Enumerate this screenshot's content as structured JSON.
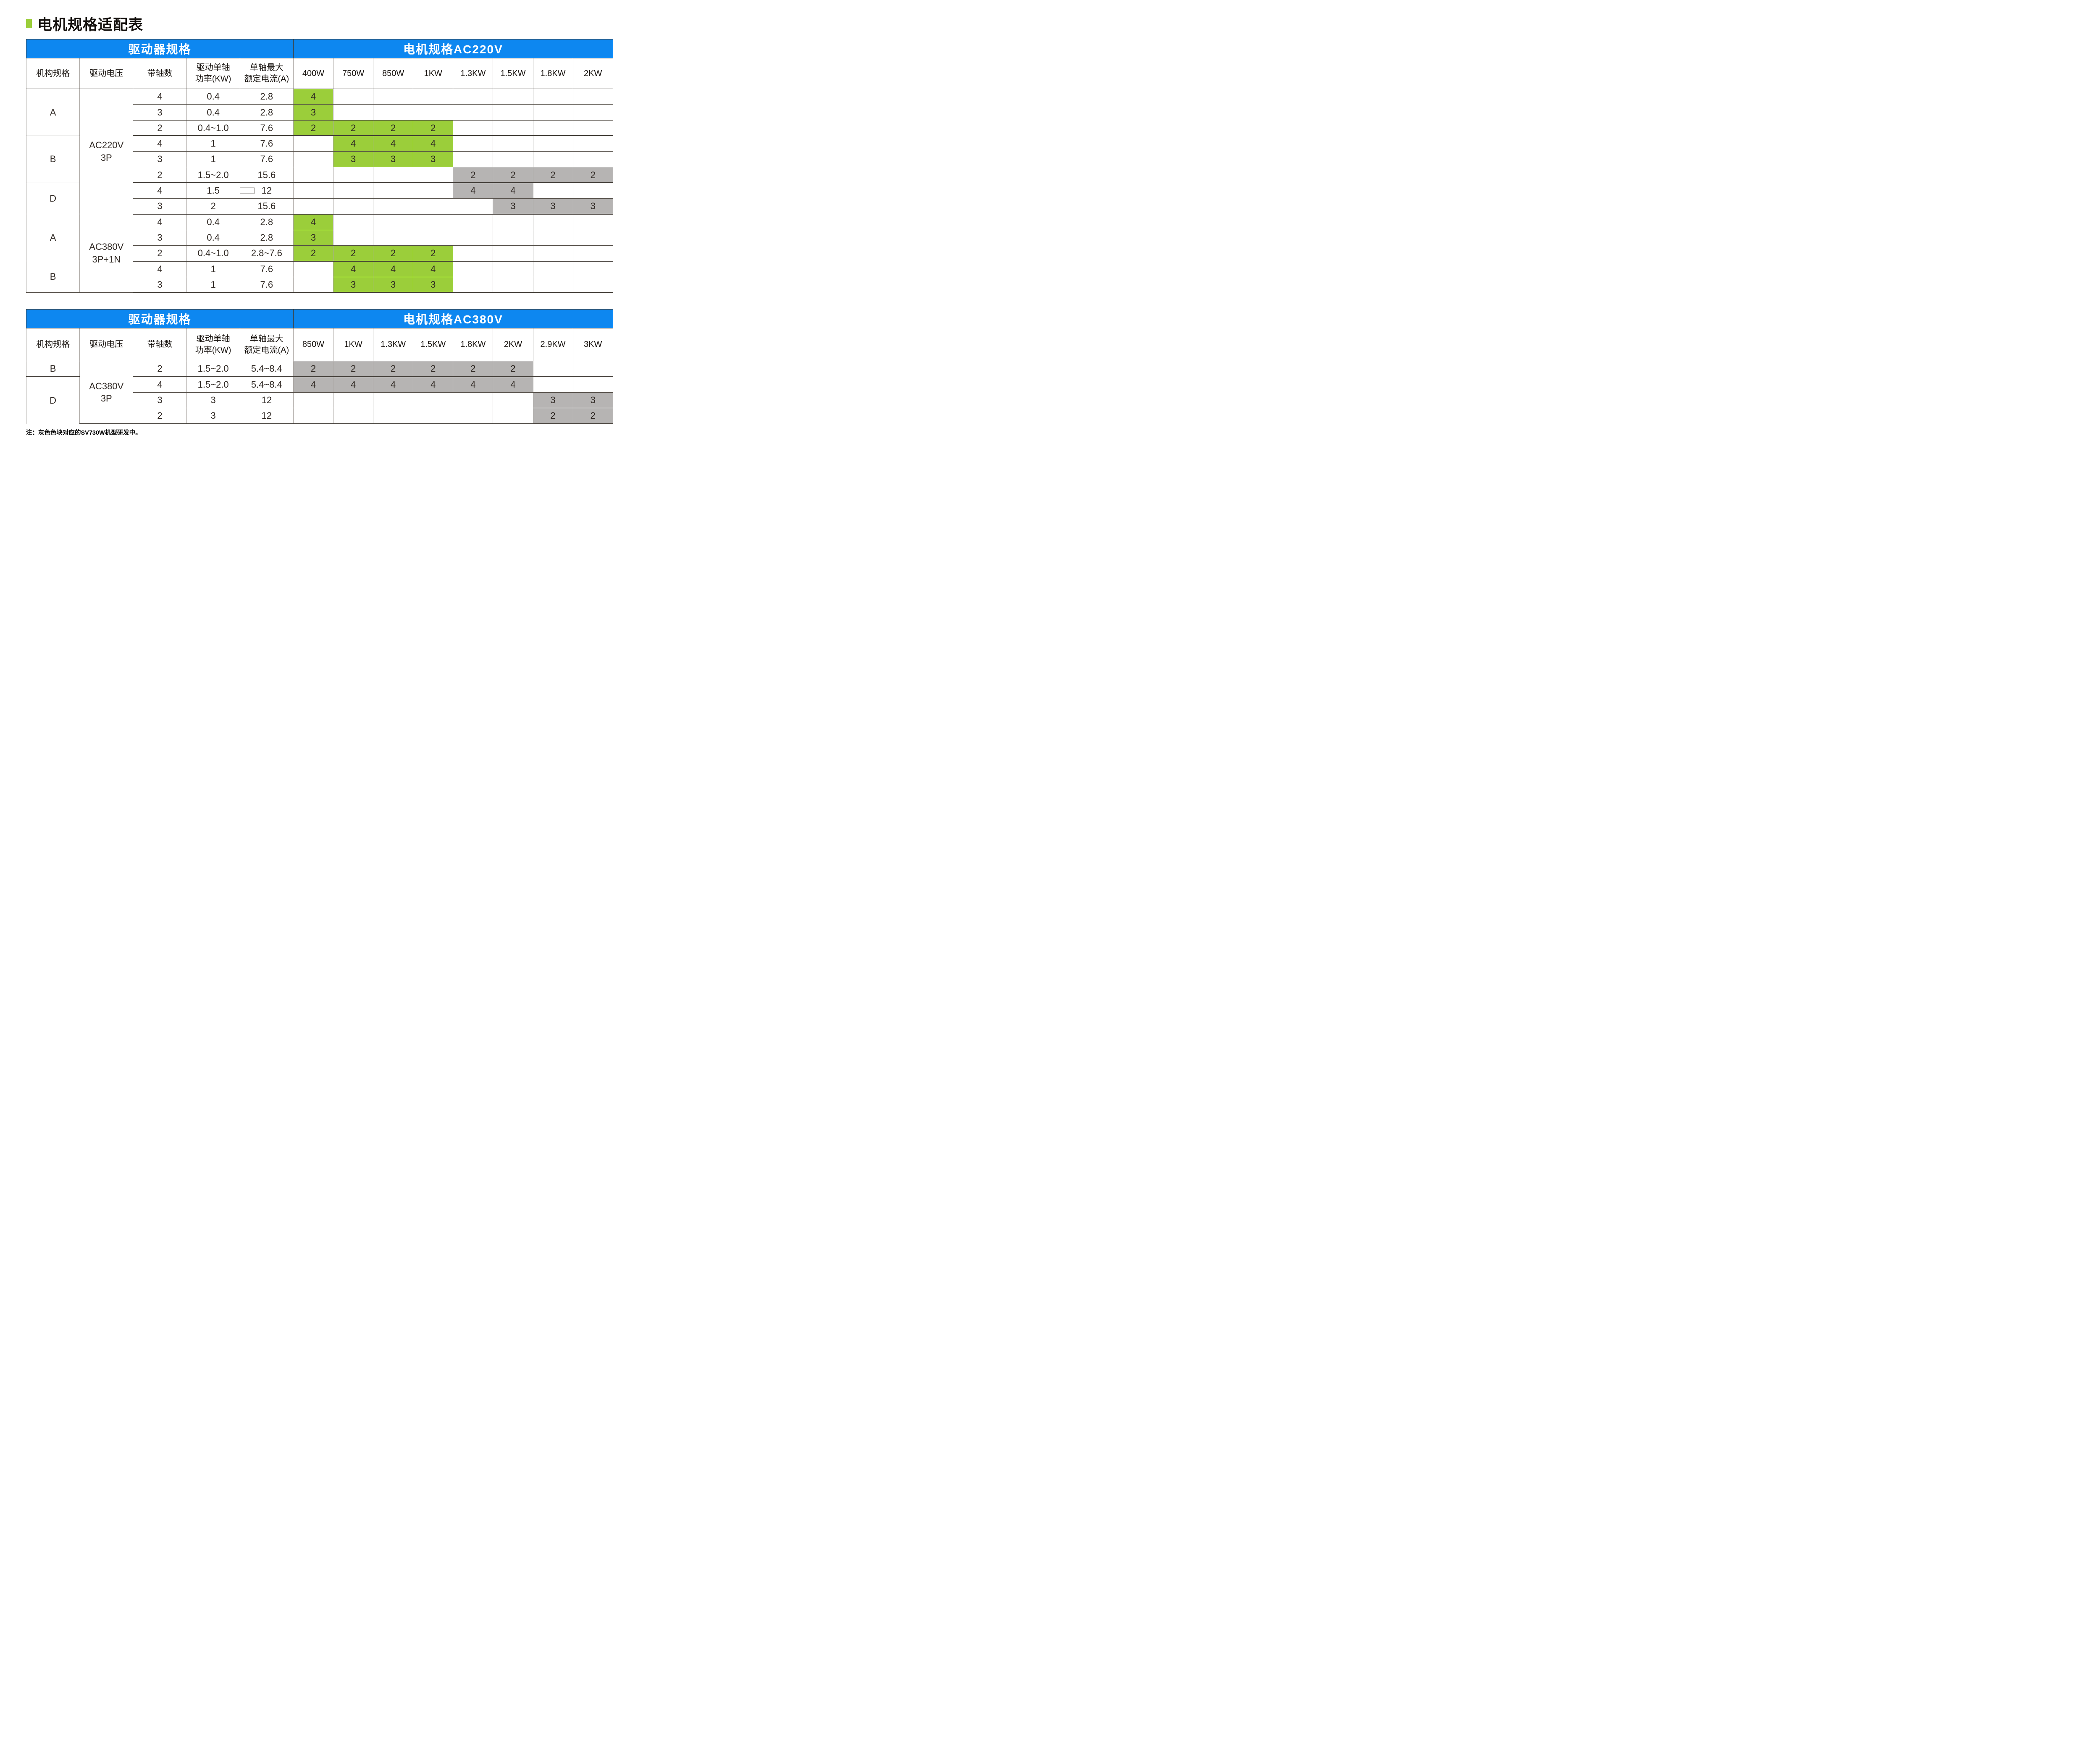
{
  "page": {
    "title": "电机规格适配表",
    "note": "注：灰色色块对应的SV730W机型研发中。"
  },
  "colors": {
    "banner_blue": "#0d87f0",
    "cell_green": "#9bce3a",
    "cell_gray": "#b6b4b3",
    "title_bullet_green": "#9bce3a",
    "grid_dark": "#4b463f",
    "grid_light": "#aaa6a2"
  },
  "tables": [
    {
      "name": "motor-adaptation-ac220v",
      "banner_left": "驱动器规格",
      "banner_right": "电机规格AC220V",
      "spec_columns": [
        "机构规格",
        "驱动电压",
        "带轴数",
        "驱动单轴\n功率(KW)",
        "单轴最大\n额定电流(A)"
      ],
      "motor_columns": [
        "400W",
        "750W",
        "850W",
        "1KW",
        "1.3KW",
        "1.5KW",
        "1.8KW",
        "2KW"
      ],
      "rows": [
        {
          "frame": {
            "v": "A",
            "rs": 3
          },
          "voltage": {
            "v": "AC220V\n3P",
            "rs": 8
          },
          "axes": "4",
          "power": "0.4",
          "current": "2.8",
          "motor": [
            [
              "4",
              "green"
            ],
            null,
            null,
            null,
            null,
            null,
            null,
            null
          ]
        },
        {
          "axes": "3",
          "power": "0.4",
          "current": "2.8",
          "motor": [
            [
              "3",
              "green"
            ],
            null,
            null,
            null,
            null,
            null,
            null,
            null
          ]
        },
        {
          "axes": "2",
          "power": "0.4~1.0",
          "current": "7.6",
          "group_end": true,
          "motor": [
            [
              "2",
              "green"
            ],
            [
              "2",
              "green"
            ],
            [
              "2",
              "green"
            ],
            [
              "2",
              "green"
            ],
            null,
            null,
            null,
            null
          ]
        },
        {
          "frame": {
            "v": "B",
            "rs": 3
          },
          "axes": "4",
          "power": "1",
          "current": "7.6",
          "motor": [
            null,
            [
              "4",
              "green"
            ],
            [
              "4",
              "green"
            ],
            [
              "4",
              "green"
            ],
            null,
            null,
            null,
            null
          ]
        },
        {
          "axes": "3",
          "power": "1",
          "current": "7.6",
          "motor": [
            null,
            [
              "3",
              "green"
            ],
            [
              "3",
              "green"
            ],
            [
              "3",
              "green"
            ],
            null,
            null,
            null,
            null
          ]
        },
        {
          "axes": "2",
          "power": "1.5~2.0",
          "current": "15.6",
          "group_end": true,
          "motor": [
            null,
            null,
            null,
            null,
            [
              "2",
              "gray"
            ],
            [
              "2",
              "gray"
            ],
            [
              "2",
              "gray"
            ],
            [
              "2",
              "gray"
            ]
          ]
        },
        {
          "frame": {
            "v": "D",
            "rs": 2
          },
          "axes": "4",
          "power": "1.5",
          "current": "12",
          "artifact_box": true,
          "motor": [
            null,
            null,
            null,
            null,
            [
              "4",
              "gray"
            ],
            [
              "4",
              "gray"
            ],
            null,
            null
          ]
        },
        {
          "axes": "3",
          "power": "2",
          "current": "15.6",
          "group_end": true,
          "motor": [
            null,
            null,
            null,
            null,
            null,
            [
              "3",
              "gray"
            ],
            [
              "3",
              "gray"
            ],
            [
              "3",
              "gray"
            ]
          ]
        },
        {
          "frame": {
            "v": "A",
            "rs": 3
          },
          "voltage": {
            "v": "AC380V\n3P+1N",
            "rs": 5
          },
          "axes": "4",
          "power": "0.4",
          "current": "2.8",
          "motor": [
            [
              "4",
              "green"
            ],
            null,
            null,
            null,
            null,
            null,
            null,
            null
          ]
        },
        {
          "axes": "3",
          "power": "0.4",
          "current": "2.8",
          "motor": [
            [
              "3",
              "green"
            ],
            null,
            null,
            null,
            null,
            null,
            null,
            null
          ]
        },
        {
          "axes": "2",
          "power": "0.4~1.0",
          "current": "2.8~7.6",
          "group_end": true,
          "motor": [
            [
              "2",
              "green"
            ],
            [
              "2",
              "green"
            ],
            [
              "2",
              "green"
            ],
            [
              "2",
              "green"
            ],
            null,
            null,
            null,
            null
          ]
        },
        {
          "frame": {
            "v": "B",
            "rs": 2
          },
          "axes": "4",
          "power": "1",
          "current": "7.6",
          "motor": [
            null,
            [
              "4",
              "green"
            ],
            [
              "4",
              "green"
            ],
            [
              "4",
              "green"
            ],
            null,
            null,
            null,
            null
          ]
        },
        {
          "axes": "3",
          "power": "1",
          "current": "7.6",
          "motor": [
            null,
            [
              "3",
              "green"
            ],
            [
              "3",
              "green"
            ],
            [
              "3",
              "green"
            ],
            null,
            null,
            null,
            null
          ]
        }
      ]
    },
    {
      "name": "motor-adaptation-ac380v",
      "banner_left": "驱动器规格",
      "banner_right": "电机规格AC380V",
      "spec_columns": [
        "机构规格",
        "驱动电压",
        "带轴数",
        "驱动单轴\n功率(KW)",
        "单轴最大\n额定电流(A)"
      ],
      "motor_columns": [
        "850W",
        "1KW",
        "1.3KW",
        "1.5KW",
        "1.8KW",
        "2KW",
        "2.9KW",
        "3KW"
      ],
      "rows": [
        {
          "frame": {
            "v": "B",
            "rs": 1
          },
          "voltage": {
            "v": "AC380V\n3P",
            "rs": 4
          },
          "axes": "2",
          "power": "1.5~2.0",
          "current": "5.4~8.4",
          "group_end": true,
          "motor": [
            [
              "2",
              "gray"
            ],
            [
              "2",
              "gray"
            ],
            [
              "2",
              "gray"
            ],
            [
              "2",
              "gray"
            ],
            [
              "2",
              "gray"
            ],
            [
              "2",
              "gray"
            ],
            null,
            null
          ]
        },
        {
          "frame": {
            "v": "D",
            "rs": 3
          },
          "axes": "4",
          "power": "1.5~2.0",
          "current": "5.4~8.4",
          "motor": [
            [
              "4",
              "gray"
            ],
            [
              "4",
              "gray"
            ],
            [
              "4",
              "gray"
            ],
            [
              "4",
              "gray"
            ],
            [
              "4",
              "gray"
            ],
            [
              "4",
              "gray"
            ],
            null,
            null
          ]
        },
        {
          "axes": "3",
          "power": "3",
          "current": "12",
          "motor": [
            null,
            null,
            null,
            null,
            null,
            null,
            [
              "3",
              "gray"
            ],
            [
              "3",
              "gray"
            ]
          ]
        },
        {
          "axes": "2",
          "power": "3",
          "current": "12",
          "motor": [
            null,
            null,
            null,
            null,
            null,
            null,
            [
              "2",
              "gray"
            ],
            [
              "2",
              "gray"
            ]
          ]
        }
      ]
    }
  ]
}
